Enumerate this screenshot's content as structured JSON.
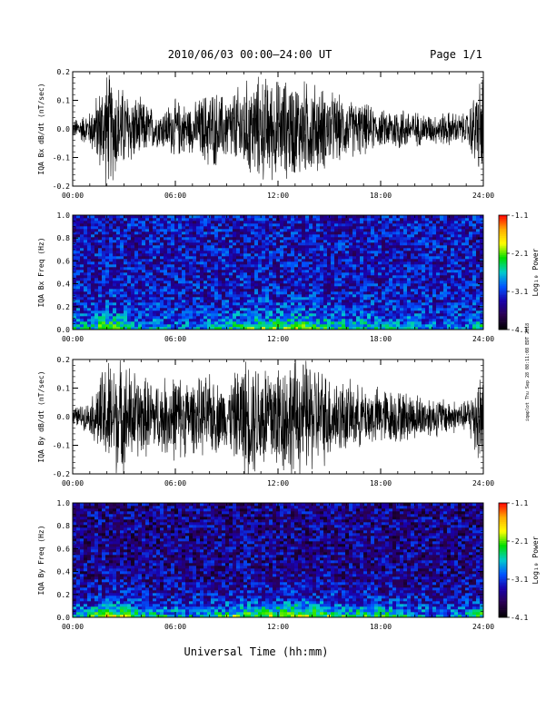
{
  "header": {
    "title": "2010/06/03  00:00–24:00 UT",
    "page": "Page 1/1"
  },
  "footer": {
    "x_axis_title": "Universal Time (hh:mm)",
    "stamp": "iqaplot Thu Sep 28 08:11:08 EDT 2018"
  },
  "colorbar": {
    "label": "Log₁₀ Power",
    "ticks": [
      "-1.1",
      "-2.1",
      "-3.1",
      "-4.1"
    ],
    "colors": [
      "#ff0000",
      "#ffaa00",
      "#ffff00",
      "#00dd00",
      "#00cccc",
      "#0055ff",
      "#1a00aa",
      "#2a0050",
      "#000000"
    ]
  },
  "chart_data": [
    {
      "type": "line",
      "id": "bx-time-series",
      "ylabel": "IQA Bx dB/dt (nT/sec)",
      "xlim": [
        0,
        24
      ],
      "ylim": [
        -0.2,
        0.2
      ],
      "x_ticks": [
        "00:00",
        "06:00",
        "12:00",
        "18:00",
        "24:00"
      ],
      "y_ticks": [
        "0.2",
        "0.1",
        "0.0",
        "-0.1",
        "-0.2"
      ],
      "x": [
        0,
        1,
        2,
        3,
        4,
        5,
        6,
        7,
        8,
        9,
        10,
        11,
        12,
        13,
        14,
        15,
        16,
        17,
        18,
        19,
        20,
        21,
        22,
        23,
        24
      ],
      "amplitude": [
        0.03,
        0.06,
        0.2,
        0.14,
        0.1,
        0.06,
        0.1,
        0.08,
        0.14,
        0.11,
        0.16,
        0.18,
        0.17,
        0.17,
        0.16,
        0.13,
        0.1,
        0.09,
        0.06,
        0.08,
        0.06,
        0.05,
        0.06,
        0.05,
        0.2
      ]
    },
    {
      "type": "heatmap",
      "id": "bx-spectrogram",
      "ylabel": "IQA Bx Freq (Hz)",
      "xlim": [
        0,
        24
      ],
      "ylim": [
        0,
        1.0
      ],
      "x_ticks": [
        "00:00",
        "06:00",
        "12:00",
        "18:00",
        "24:00"
      ],
      "y_ticks": [
        "1.0",
        "0.8",
        "0.6",
        "0.4",
        "0.2",
        "0.0"
      ],
      "zlim": [
        -4.1,
        -1.1
      ],
      "x": [
        0,
        1,
        2,
        3,
        4,
        5,
        6,
        7,
        8,
        9,
        10,
        11,
        12,
        13,
        14,
        15,
        16,
        17,
        18,
        19,
        20,
        21,
        22,
        23,
        24
      ],
      "low_freq_power": [
        -2.6,
        -2.5,
        -1.9,
        -2.2,
        -2.6,
        -2.7,
        -2.7,
        -2.8,
        -2.6,
        -2.5,
        -2.3,
        -2.1,
        -2.0,
        -2.0,
        -2.1,
        -2.3,
        -2.4,
        -2.4,
        -2.5,
        -2.6,
        -2.7,
        -2.8,
        -2.8,
        -2.8,
        -2.3
      ],
      "background_power": -3.3
    },
    {
      "type": "line",
      "id": "by-time-series",
      "ylabel": "IQA By dB/dt (nT/sec)",
      "xlim": [
        0,
        24
      ],
      "ylim": [
        -0.2,
        0.2
      ],
      "x_ticks": [
        "00:00",
        "06:00",
        "12:00",
        "18:00",
        "24:00"
      ],
      "y_ticks": [
        "0.2",
        "0.1",
        "0.0",
        "-0.1",
        "-0.2"
      ],
      "x": [
        0,
        1,
        2,
        3,
        4,
        5,
        6,
        7,
        8,
        9,
        10,
        11,
        12,
        13,
        14,
        15,
        16,
        17,
        18,
        19,
        20,
        21,
        22,
        23,
        24
      ],
      "amplitude": [
        0.03,
        0.05,
        0.2,
        0.19,
        0.14,
        0.12,
        0.15,
        0.12,
        0.14,
        0.1,
        0.2,
        0.2,
        0.2,
        0.2,
        0.19,
        0.15,
        0.12,
        0.1,
        0.1,
        0.09,
        0.08,
        0.07,
        0.06,
        0.05,
        0.2
      ]
    },
    {
      "type": "heatmap",
      "id": "by-spectrogram",
      "ylabel": "IQA By Freq (Hz)",
      "xlim": [
        0,
        24
      ],
      "ylim": [
        0,
        1.0
      ],
      "x_ticks": [
        "00:00",
        "06:00",
        "12:00",
        "18:00",
        "24:00"
      ],
      "y_ticks": [
        "1.0",
        "0.8",
        "0.6",
        "0.4",
        "0.2",
        "0.0"
      ],
      "zlim": [
        -4.1,
        -1.1
      ],
      "x": [
        0,
        1,
        2,
        3,
        4,
        5,
        6,
        7,
        8,
        9,
        10,
        11,
        12,
        13,
        14,
        15,
        16,
        17,
        18,
        19,
        20,
        21,
        22,
        23,
        24
      ],
      "low_freq_power": [
        -2.5,
        -2.4,
        -1.7,
        -2.0,
        -2.3,
        -2.4,
        -2.5,
        -2.6,
        -2.4,
        -2.3,
        -2.0,
        -1.9,
        -1.8,
        -1.7,
        -1.9,
        -2.1,
        -2.2,
        -2.1,
        -2.2,
        -2.4,
        -2.6,
        -2.7,
        -2.7,
        -2.6,
        -2.1
      ],
      "background_power": -3.5
    }
  ]
}
